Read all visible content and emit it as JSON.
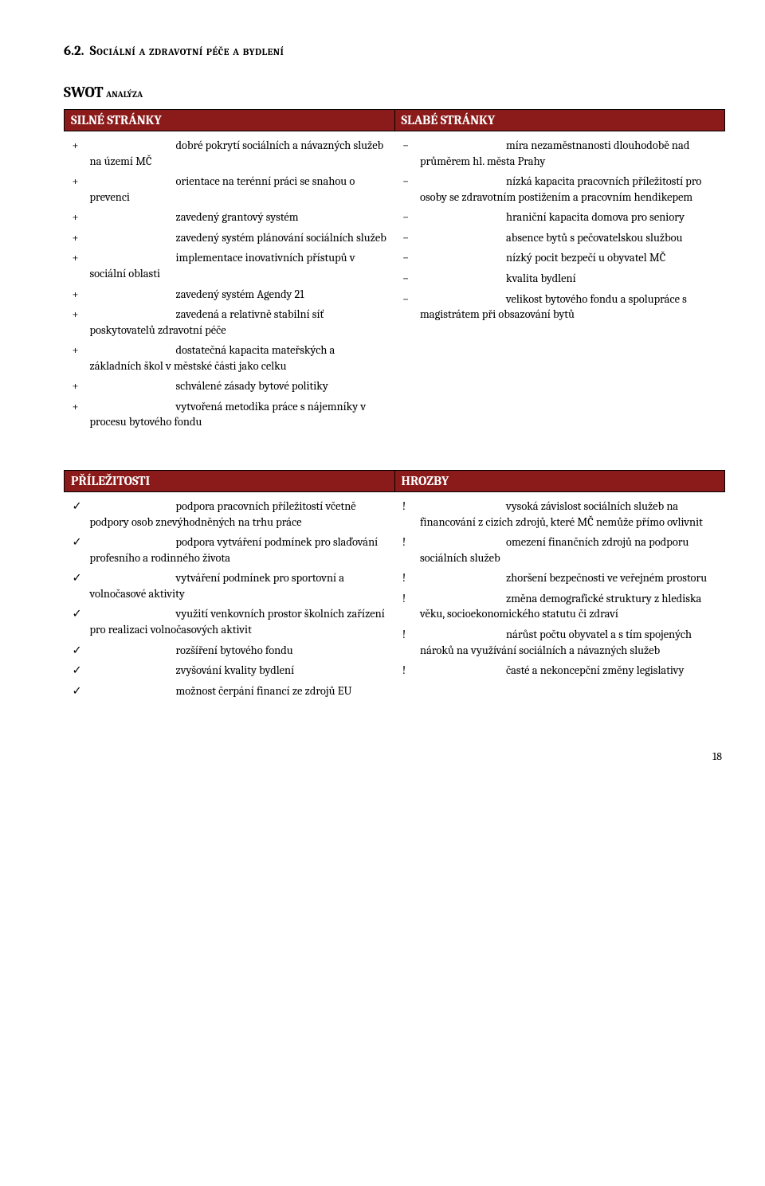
{
  "section_number": "6.2.",
  "section_title": "Sociální a zdravotní péče a bydlení",
  "subhead_main": "SWOT",
  "subhead_sub": " analýza",
  "headers": {
    "strengths": "SILNÉ STRÁNKY",
    "weaknesses": "SLABÉ STRÁNKY",
    "opportunities": "PŘÍLEŽITOSTI",
    "threats": "HROZBY"
  },
  "bullets": {
    "plus": "+",
    "minus": "−",
    "check": "✓",
    "bang": "!"
  },
  "colors": {
    "header_bg": "#8b1a1a",
    "header_fg": "#ffffff",
    "border": "#000000"
  },
  "strengths": [
    "dobré pokrytí sociálních a návazných služeb na území MČ",
    "orientace na terénní práci se snahou o prevenci",
    "zavedený grantový systém",
    "zavedený systém plánování sociálních služeb",
    "implementace inovativních přístupů v sociální oblasti",
    "zavedený systém Agendy 21",
    "zavedená a relativně stabilní síť poskytovatelů zdravotní péče",
    "dostatečná kapacita mateřských a základních škol v městské části jako celku",
    "schválené zásady bytové politiky",
    "vytvořená metodika práce s nájemníky v procesu bytového fondu"
  ],
  "weaknesses": [
    "míra nezaměstnanosti dlouhodobě nad průměrem hl. města Prahy",
    "nízká kapacita pracovních příležitostí pro osoby se zdravotním postižením a pracovním hendikepem",
    "hraniční kapacita domova pro seniory",
    "absence bytů s pečovatelskou službou",
    "nízký pocit bezpečí u obyvatel MČ",
    "kvalita bydlení",
    "velikost bytového fondu a spolupráce s magistrátem při obsazování bytů"
  ],
  "opportunities": [
    "podpora pracovních příležitostí včetně podpory osob znevýhodněných na trhu práce",
    "podpora vytváření podmínek pro slaďování profesního a rodinného života",
    "vytváření podmínek pro sportovní a volnočasové aktivity",
    "využití venkovních prostor školních zařízení pro realizaci volnočasových aktivit",
    "rozšíření bytového fondu",
    "zvyšování kvality bydlení",
    "možnost čerpání financí ze zdrojů EU"
  ],
  "threats": [
    "vysoká závislost sociálních služeb na financování z cizích zdrojů, které MČ nemůže přímo ovlivnit",
    "omezení finančních zdrojů na podporu sociálních služeb",
    "zhoršení bezpečnosti ve veřejném prostoru",
    "změna demografické struktury z hlediska věku, socioekonomického statutu či zdraví",
    "nárůst počtu obyvatel a s tím spojených nároků na využívání sociálních a návazných služeb",
    "časté a nekoncepční změny legislativy"
  ],
  "page_number": "18"
}
